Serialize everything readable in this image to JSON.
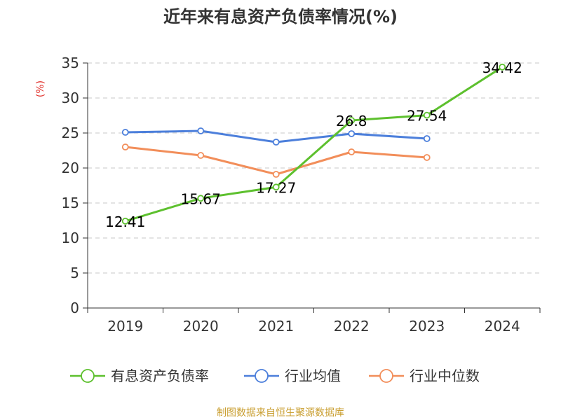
{
  "chart_data": {
    "type": "line",
    "title": "近年来有息资产负债率情况(%)",
    "ylabel": "(%)",
    "categories": [
      "2019",
      "2020",
      "2021",
      "2022",
      "2023",
      "2024"
    ],
    "ylim": [
      0,
      35
    ],
    "yticks": [
      "0",
      "5",
      "10",
      "15",
      "20",
      "25",
      "30",
      "35"
    ],
    "grid": true,
    "legend_position": "bottom",
    "series": [
      {
        "name": "有息资产负债率",
        "color": "#5dc02e",
        "values": [
          12.41,
          15.67,
          17.27,
          26.8,
          27.54,
          34.42
        ],
        "labels": [
          "12.41",
          "15.67",
          "17.27",
          "26.8",
          "27.54",
          "34.42"
        ]
      },
      {
        "name": "行业均值",
        "color": "#4c7fdb",
        "values": [
          25.1,
          25.3,
          23.7,
          24.9,
          24.2,
          null
        ]
      },
      {
        "name": "行业中位数",
        "color": "#f28e5a",
        "values": [
          23.0,
          21.8,
          19.1,
          22.3,
          21.5,
          null
        ]
      }
    ]
  },
  "source": "制图数据来自恒生聚源数据库"
}
